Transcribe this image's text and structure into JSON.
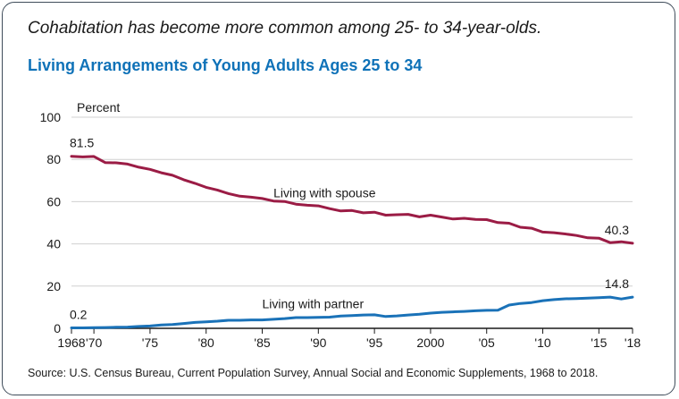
{
  "header": {
    "subtitle": "Cohabitation has become more common among 25- to 34-year-olds.",
    "title": "Living Arrangements of Young Adults Ages 25 to 34"
  },
  "footer": {
    "source": "Source: U.S. Census Bureau, Current Population Survey, Annual Social and Economic Supplements, 1968 to 2018."
  },
  "colors": {
    "spouse": "#9b1c45",
    "partner": "#1a72b8",
    "title": "#0f72b8",
    "grid": "#d0d0d0",
    "axis": "#1a1a1a"
  },
  "chart_data": {
    "type": "line",
    "title": "Living Arrangements of Young Adults Ages 25 to 34",
    "subtitle": "Cohabitation has become more common among 25- to 34-year-olds.",
    "ylabel": "Percent",
    "xlabel": "",
    "xlim": [
      1968,
      2018
    ],
    "ylim": [
      0,
      100
    ],
    "yticks": [
      0,
      20,
      40,
      60,
      80,
      100
    ],
    "xticks": [
      {
        "value": 1968,
        "label": "1968"
      },
      {
        "value": 1970,
        "label": "'70"
      },
      {
        "value": 1975,
        "label": "'75"
      },
      {
        "value": 1980,
        "label": "'80"
      },
      {
        "value": 1985,
        "label": "'85"
      },
      {
        "value": 1990,
        "label": "'90"
      },
      {
        "value": 1995,
        "label": "'95"
      },
      {
        "value": 2000,
        "label": "2000"
      },
      {
        "value": 2005,
        "label": "'05"
      },
      {
        "value": 2010,
        "label": "'10"
      },
      {
        "value": 2015,
        "label": "'15"
      },
      {
        "value": 2018,
        "label": "'18"
      }
    ],
    "grid": true,
    "x": [
      1968,
      1969,
      1970,
      1971,
      1972,
      1973,
      1974,
      1975,
      1976,
      1977,
      1978,
      1979,
      1980,
      1981,
      1982,
      1983,
      1984,
      1985,
      1986,
      1987,
      1988,
      1989,
      1990,
      1991,
      1992,
      1993,
      1994,
      1995,
      1996,
      1997,
      1998,
      1999,
      2000,
      2001,
      2002,
      2003,
      2004,
      2005,
      2006,
      2007,
      2008,
      2009,
      2010,
      2011,
      2012,
      2013,
      2014,
      2015,
      2016,
      2017,
      2018
    ],
    "series": [
      {
        "name": "Living with spouse",
        "key": "spouse",
        "values": [
          81.5,
          81.2,
          81.4,
          78.5,
          78.4,
          77.8,
          76.3,
          75.3,
          73.7,
          72.5,
          70.4,
          68.7,
          66.8,
          65.5,
          63.8,
          62.6,
          62.1,
          61.5,
          60.3,
          60.1,
          58.8,
          58.3,
          58.0,
          56.7,
          55.6,
          55.8,
          54.7,
          55.0,
          53.6,
          53.8,
          54.0,
          52.8,
          53.6,
          52.7,
          51.8,
          52.1,
          51.6,
          51.5,
          50.1,
          49.8,
          47.9,
          47.4,
          45.6,
          45.3,
          44.7,
          44.0,
          42.9,
          42.7,
          40.6,
          41.0,
          40.3
        ],
        "label": "Living with spouse",
        "start_label": "81.5",
        "end_label": "40.3"
      },
      {
        "name": "Living with partner",
        "key": "partner",
        "values": [
          0.2,
          0.2,
          0.3,
          0.4,
          0.5,
          0.6,
          0.9,
          1.1,
          1.6,
          1.8,
          2.3,
          2.8,
          3.1,
          3.4,
          3.8,
          3.8,
          4.0,
          4.0,
          4.3,
          4.6,
          5.1,
          5.1,
          5.2,
          5.3,
          5.8,
          6.0,
          6.3,
          6.4,
          5.6,
          5.9,
          6.3,
          6.7,
          7.2,
          7.6,
          7.8,
          8.0,
          8.3,
          8.5,
          8.6,
          11.0,
          11.8,
          12.2,
          13.1,
          13.6,
          14.0,
          14.1,
          14.3,
          14.5,
          14.8,
          13.9,
          14.8
        ],
        "label": "Living with partner",
        "start_label": "0.2",
        "end_label": "14.8"
      }
    ]
  }
}
